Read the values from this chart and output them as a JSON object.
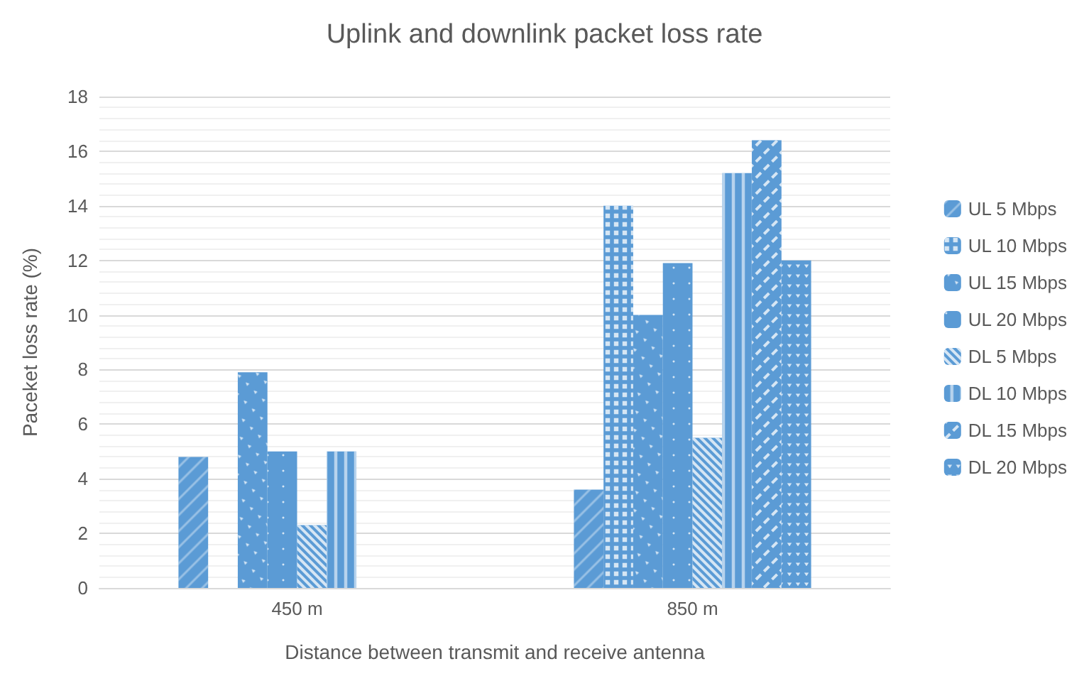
{
  "chart_data": {
    "type": "bar",
    "title": "Uplink and downlink packet loss rate",
    "xlabel": "Distance between transmit and receive antenna",
    "ylabel": "Paceket loss rate (%)",
    "categories": [
      "450 m",
      "850 m"
    ],
    "series": [
      {
        "name": "UL 5 Mbps",
        "color": "#5b9bd5",
        "values": [
          4.8,
          3.6
        ]
      },
      {
        "name": "UL 10 Mbps",
        "color": "#5b9bd5",
        "values": [
          0,
          14.0
        ]
      },
      {
        "name": "UL 15 Mbps",
        "color": "#5b9bd5",
        "values": [
          7.9,
          10.0
        ]
      },
      {
        "name": "UL 20 Mbps",
        "color": "#5b9bd5",
        "values": [
          5.0,
          11.9
        ]
      },
      {
        "name": "DL 5 Mbps",
        "color": "#5b9bd5",
        "values": [
          2.3,
          5.5
        ]
      },
      {
        "name": "DL 10 Mbps",
        "color": "#5b9bd5",
        "values": [
          5.0,
          15.2
        ]
      },
      {
        "name": "DL 15 Mbps",
        "color": "#5b9bd5",
        "values": [
          0,
          16.4
        ]
      },
      {
        "name": "DL 20 Mbps",
        "color": "#5b9bd5",
        "values": [
          0,
          12.0
        ]
      }
    ],
    "ylim": [
      0,
      18
    ],
    "yticks": [
      0,
      2,
      4,
      6,
      8,
      10,
      12,
      14,
      16,
      18
    ],
    "grid": true,
    "legend": "right"
  }
}
